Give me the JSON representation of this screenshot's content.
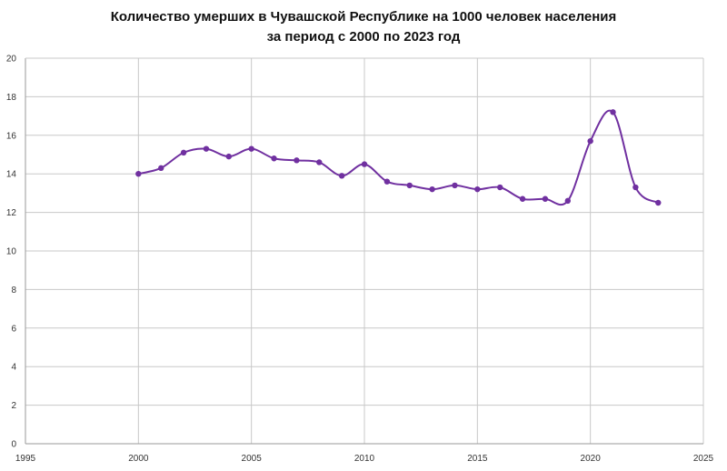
{
  "chart_data": {
    "type": "line",
    "title_lines": [
      "Количество умерших в Чувашской Республике на 1000 человек населения",
      "за период с 2000 по 2023 год"
    ],
    "xlabel": "",
    "ylabel": "",
    "xlim": [
      1995,
      2025
    ],
    "ylim": [
      0,
      20
    ],
    "x_ticks": [
      1995,
      2000,
      2005,
      2010,
      2015,
      2020,
      2025
    ],
    "y_ticks": [
      0,
      2,
      4,
      6,
      8,
      10,
      12,
      14,
      16,
      18,
      20
    ],
    "grid": true,
    "legend": "none",
    "series": [
      {
        "color": "#7030A0",
        "x": [
          2000,
          2001,
          2002,
          2003,
          2004,
          2005,
          2006,
          2007,
          2008,
          2009,
          2010,
          2011,
          2012,
          2013,
          2014,
          2015,
          2016,
          2017,
          2018,
          2019,
          2020,
          2021,
          2022,
          2023
        ],
        "y": [
          14.0,
          14.3,
          15.1,
          15.3,
          14.9,
          15.3,
          14.8,
          14.7,
          14.6,
          13.9,
          14.5,
          13.6,
          13.4,
          13.2,
          13.4,
          13.2,
          13.3,
          12.7,
          12.7,
          12.6,
          15.7,
          17.2,
          13.3,
          12.5
        ]
      }
    ]
  }
}
